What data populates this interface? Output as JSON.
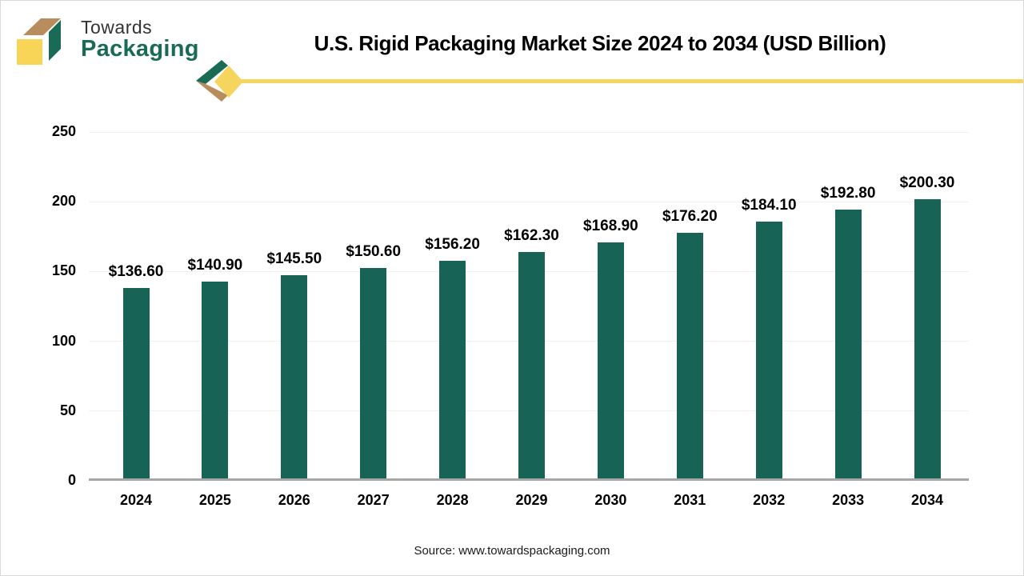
{
  "header": {
    "logo": {
      "line1": "Towards",
      "line2": "Packaging"
    },
    "title": "U.S. Rigid Packaging Market Size 2024 to 2034 (USD Billion)"
  },
  "chart_data": {
    "type": "bar",
    "title": "U.S. Rigid Packaging Market Size 2024 to 2034 (USD Billion)",
    "categories": [
      "2024",
      "2025",
      "2026",
      "2027",
      "2028",
      "2029",
      "2030",
      "2031",
      "2032",
      "2033",
      "2034"
    ],
    "values": [
      136.6,
      140.9,
      145.5,
      150.6,
      156.2,
      162.3,
      168.9,
      176.2,
      184.1,
      192.8,
      200.3
    ],
    "value_labels": [
      "$136.60",
      "$140.90",
      "$145.50",
      "$150.60",
      "$156.20",
      "$162.30",
      "$168.90",
      "$176.20",
      "$184.10",
      "$192.80",
      "$200.30"
    ],
    "xlabel": "",
    "ylabel": "",
    "ylim": [
      0,
      250
    ],
    "yticks": [
      0,
      50,
      100,
      150,
      200,
      250
    ],
    "grid": true,
    "legend": "none",
    "bar_color": "#176456"
  },
  "footer": {
    "source": "Source: www.towardspackaging.com"
  },
  "colors": {
    "bar": "#176456",
    "accent_yellow": "#f5d55e",
    "logo_green": "#1a6b55",
    "logo_tan": "#b98c5d",
    "logo_front_yellow": "#f8d557",
    "axis_line": "#a6a6a6",
    "gridline": "#f0f2f2"
  }
}
